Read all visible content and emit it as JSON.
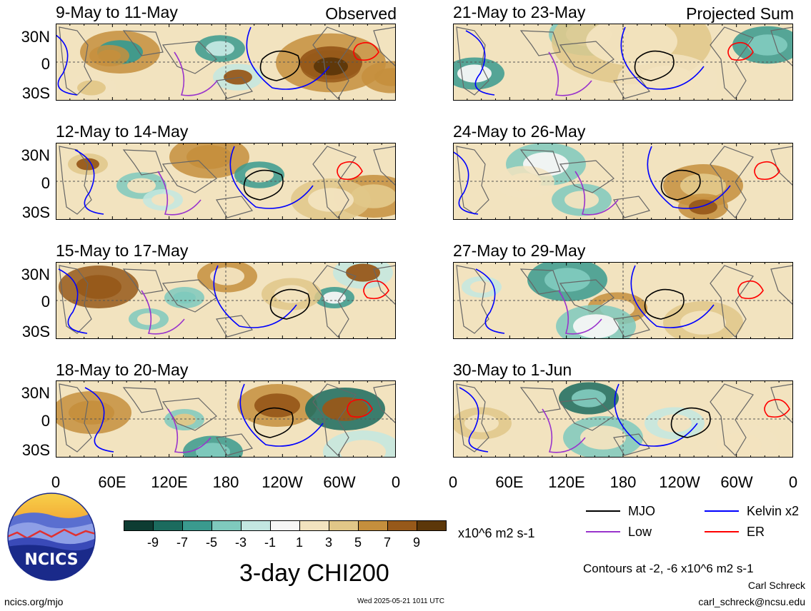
{
  "panels": {
    "left": [
      {
        "title": "9-May to 11-May",
        "corner": "Observed"
      },
      {
        "title": "12-May to 14-May",
        "corner": ""
      },
      {
        "title": "15-May to 17-May",
        "corner": ""
      },
      {
        "title": "18-May to 20-May",
        "corner": ""
      }
    ],
    "right": [
      {
        "title": "21-May to 23-May",
        "corner": "Projected Sum"
      },
      {
        "title": "24-May to 26-May",
        "corner": ""
      },
      {
        "title": "27-May to 29-May",
        "corner": ""
      },
      {
        "title": "30-May to 1-Jun",
        "corner": ""
      }
    ]
  },
  "lat_labels": [
    "30N",
    "0",
    "30S"
  ],
  "lon_labels": [
    "0",
    "60E",
    "120E",
    "180",
    "120W",
    "60W",
    "0"
  ],
  "colorbar": {
    "colors": [
      "#0d3c32",
      "#1b6b5e",
      "#3a9a8e",
      "#7fc9bd",
      "#c3e7e1",
      "#f6f6f6",
      "#f2e3bf",
      "#e1c788",
      "#c58f3d",
      "#97591a",
      "#5c3709"
    ],
    "ticks": [
      "-9",
      "-7",
      "-5",
      "-3",
      "-1",
      "1",
      "3",
      "5",
      "7",
      "9"
    ],
    "units": "x10^6 m2 s-1"
  },
  "legend": {
    "items": [
      {
        "label": "MJO",
        "color": "#000000"
      },
      {
        "label": "Kelvin x2",
        "color": "#0000ff"
      },
      {
        "label": "Low",
        "color": "#9933cc"
      },
      {
        "label": "ER",
        "color": "#ff0000"
      }
    ],
    "contours_note": "Contours at -2, -6 x10^6 m2 s-1"
  },
  "logo": {
    "text": "NCICS"
  },
  "main_title": "3-day CHI200",
  "footer": {
    "url": "ncics.org/mjo",
    "timestamp": "Wed 2025-05-21 1011 UTC",
    "author": "Carl Schreck",
    "email": "carl_schreck@ncsu.edu"
  }
}
